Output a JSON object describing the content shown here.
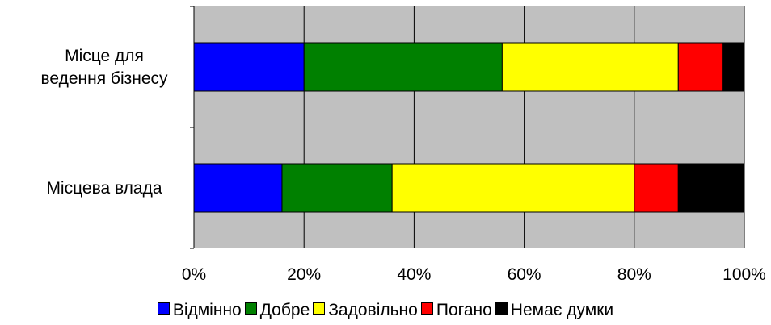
{
  "chart_data": {
    "type": "bar",
    "orientation": "horizontal",
    "stacked": "percent",
    "categories": [
      "Місце для ведення бізнесу",
      "Місцева влада"
    ],
    "category_lines": [
      [
        "Місце для",
        "ведення бізнесу"
      ],
      [
        "Місцева влада"
      ]
    ],
    "series": [
      {
        "name": "Відмінно",
        "color": "#0000ff",
        "values": [
          20,
          16
        ]
      },
      {
        "name": "Добре",
        "color": "#008000",
        "values": [
          36,
          20
        ]
      },
      {
        "name": "Задовільно",
        "color": "#ffff00",
        "values": [
          32,
          44
        ]
      },
      {
        "name": "Погано",
        "color": "#ff0000",
        "values": [
          8,
          8
        ]
      },
      {
        "name": "Немає думки",
        "color": "#000000",
        "values": [
          4,
          12
        ]
      }
    ],
    "xlim": [
      0,
      100
    ],
    "x_ticks": [
      "0%",
      "20%",
      "40%",
      "60%",
      "80%",
      "100%"
    ],
    "xlabel": "",
    "ylabel": "",
    "title": "",
    "grid": true,
    "plot_background": "#c0c0c0",
    "legend_position": "bottom"
  }
}
